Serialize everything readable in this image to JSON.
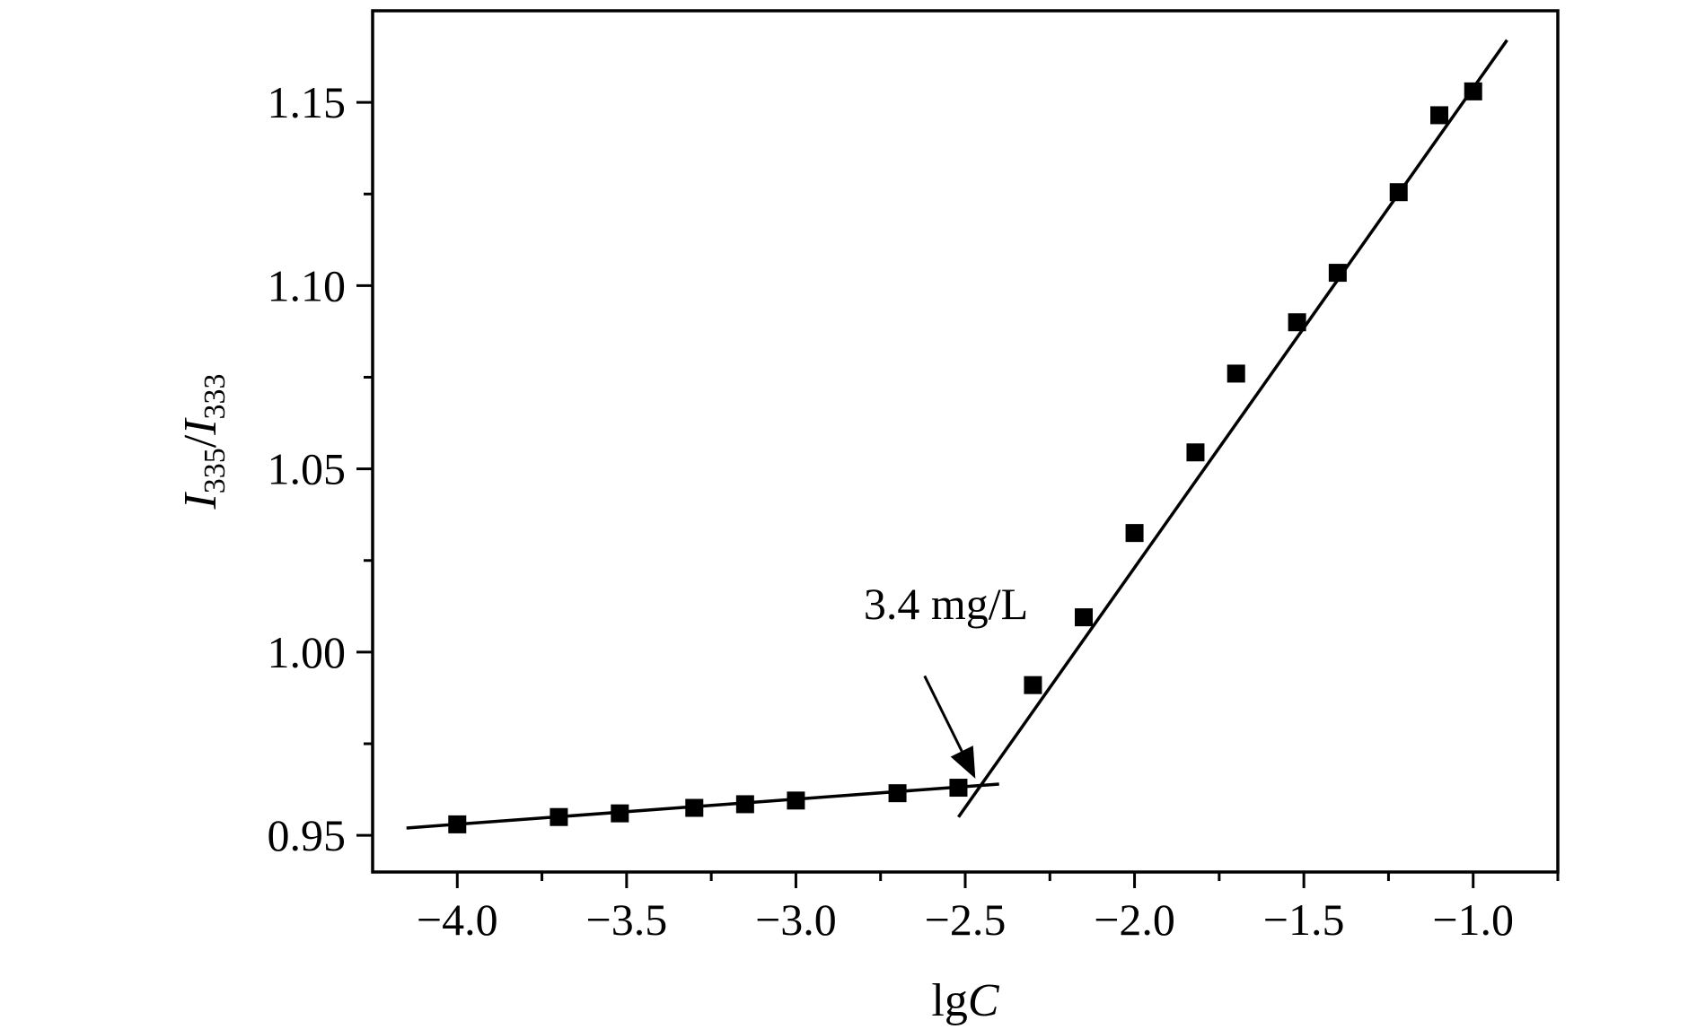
{
  "chart_data": {
    "type": "scatter",
    "title": "",
    "xlabel": {
      "prefix": "lg",
      "italic": "C"
    },
    "ylabel": {
      "i1": "I",
      "sub1": "335",
      "slash": "/",
      "i2": "I",
      "sub2": "333"
    },
    "xlim": [
      -4.25,
      -0.75
    ],
    "ylim": [
      0.94,
      1.175
    ],
    "x_ticks": [
      {
        "value": -4.0,
        "label": "−4.0"
      },
      {
        "value": -3.5,
        "label": "−3.5"
      },
      {
        "value": -3.0,
        "label": "−3.0"
      },
      {
        "value": -2.5,
        "label": "−2.5"
      },
      {
        "value": -2.0,
        "label": "−2.0"
      },
      {
        "value": -1.5,
        "label": "−1.5"
      },
      {
        "value": -1.0,
        "label": "−1.0"
      }
    ],
    "x_minor_ticks": [
      -3.75,
      -3.25,
      -2.75,
      -2.25,
      -1.75,
      -1.25,
      -0.75
    ],
    "y_ticks": [
      {
        "value": 0.95,
        "label": "0.95"
      },
      {
        "value": 1.0,
        "label": "1.00"
      },
      {
        "value": 1.05,
        "label": "1.05"
      },
      {
        "value": 1.1,
        "label": "1.10"
      },
      {
        "value": 1.15,
        "label": "1.15"
      }
    ],
    "y_minor_ticks": [
      0.975,
      1.025,
      1.075,
      1.125
    ],
    "grid": false,
    "series": [
      {
        "marker": "square",
        "color": "#000000",
        "x": [
          -4.0,
          -3.7,
          -3.52,
          -3.3,
          -3.15,
          -3.0,
          -2.7,
          -2.52,
          -2.3,
          -2.15,
          -2.0,
          -1.82,
          -1.7,
          -1.52,
          -1.4,
          -1.22,
          -1.1,
          -1.0
        ],
        "y": [
          0.953,
          0.955,
          0.956,
          0.9575,
          0.9585,
          0.9595,
          0.9615,
          0.963,
          0.991,
          1.0095,
          1.0325,
          1.0545,
          1.076,
          1.09,
          1.1035,
          1.1255,
          1.1465,
          1.153
        ]
      }
    ],
    "fit_lines": [
      {
        "x": [
          -4.15,
          -2.4
        ],
        "y": [
          0.952,
          0.964
        ]
      },
      {
        "x": [
          -2.52,
          -0.9
        ],
        "y": [
          0.955,
          1.167
        ]
      }
    ],
    "annotation": {
      "text": "3.4 mg/L",
      "text_at": [
        -2.8,
        1.009
      ],
      "arrow_from": [
        -2.62,
        0.9935
      ],
      "arrow_to": [
        -2.47,
        0.9655
      ]
    },
    "colors": {
      "ink": "#000000",
      "background": "#ffffff"
    }
  }
}
